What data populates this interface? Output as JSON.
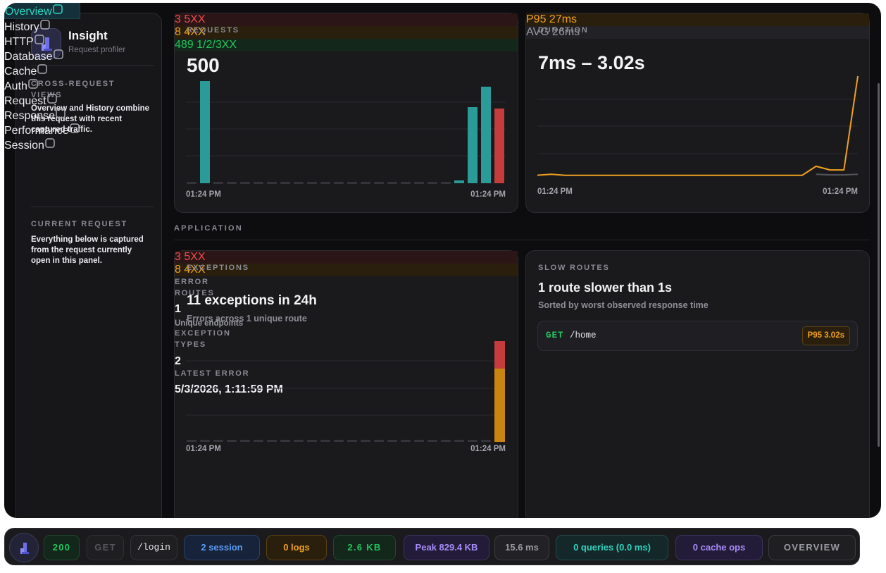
{
  "sidebar": {
    "app_name": "Insight",
    "app_subtitle": "Request profiler",
    "cross_section": {
      "title": "CROSS-REQUEST VIEWS",
      "description": "Overview and History combine this request with recent captured traffic.",
      "items": [
        {
          "label": "Overview",
          "active": true
        },
        {
          "label": "History",
          "active": false
        }
      ]
    },
    "current_section": {
      "title": "CURRENT REQUEST",
      "description": "Everything below is captured from the request currently open in this panel.",
      "items": [
        {
          "label": "HTTP"
        },
        {
          "label": "Database"
        },
        {
          "label": "Cache"
        },
        {
          "label": "Auth"
        },
        {
          "label": "Request"
        },
        {
          "label": "Response"
        },
        {
          "label": "Performance"
        },
        {
          "label": "Session"
        }
      ]
    }
  },
  "requests_card": {
    "label": "REQUESTS",
    "total": "500",
    "badges": [
      {
        "text": "489 1/2/3XX",
        "tone": "green"
      },
      {
        "text": "8 4XX",
        "tone": "orange"
      },
      {
        "text": "3 5XX",
        "tone": "red"
      }
    ],
    "chart": {
      "type": "bar",
      "values": [
        0,
        145,
        0,
        0,
        0,
        0,
        0,
        0,
        0,
        0,
        0,
        0,
        0,
        0,
        0,
        0,
        0,
        0,
        0,
        0,
        4,
        108,
        137,
        0
      ],
      "error_values": [
        0,
        0,
        0,
        0,
        0,
        0,
        0,
        0,
        0,
        0,
        0,
        0,
        0,
        0,
        0,
        0,
        0,
        0,
        0,
        0,
        0,
        0,
        0,
        106
      ],
      "ylim": [
        0,
        150
      ],
      "x_labels": [
        "01:24 PM",
        "01:24 PM"
      ]
    }
  },
  "duration_card": {
    "label": "DURATION",
    "range": "7ms – 3.02s",
    "badges": [
      {
        "text": "AVG 26ms",
        "tone": "gray"
      },
      {
        "text": "P95 27ms",
        "tone": "orange"
      }
    ],
    "chart": {
      "type": "line",
      "values": [
        30,
        60,
        26,
        26,
        26,
        26,
        26,
        26,
        26,
        26,
        26,
        26,
        26,
        26,
        26,
        26,
        26,
        26,
        26,
        26,
        300,
        190,
        190,
        3020
      ],
      "secondary_values": [
        null,
        null,
        null,
        null,
        null,
        null,
        null,
        null,
        null,
        null,
        null,
        null,
        null,
        null,
        null,
        null,
        null,
        null,
        null,
        null,
        60,
        40,
        40,
        60
      ],
      "ylim": [
        0,
        3020
      ],
      "x_labels": [
        "01:24 PM",
        "01:24 PM"
      ]
    }
  },
  "section_heading": "APPLICATION",
  "exceptions_card": {
    "label": "EXCEPTIONS",
    "headline": "11 exceptions in 24h",
    "subline": "Errors across 1 unique route",
    "badges": [
      {
        "text": "8 4XX",
        "tone": "orange"
      },
      {
        "text": "3 5XX",
        "tone": "red"
      }
    ],
    "chart": {
      "type": "stacked-bar",
      "client_values": [
        0,
        0,
        0,
        0,
        0,
        0,
        0,
        0,
        0,
        0,
        0,
        0,
        0,
        0,
        0,
        0,
        0,
        0,
        0,
        0,
        0,
        0,
        0,
        8
      ],
      "server_values": [
        0,
        0,
        0,
        0,
        0,
        0,
        0,
        0,
        0,
        0,
        0,
        0,
        0,
        0,
        0,
        0,
        0,
        0,
        0,
        0,
        0,
        0,
        0,
        3
      ],
      "ylim": [
        0,
        11
      ],
      "x_labels": [
        "01:24 PM",
        "01:24 PM"
      ]
    },
    "stats": [
      {
        "label": "ERROR ROUTES",
        "value": "1",
        "note": "Unique endpoints"
      },
      {
        "label": "EXCEPTION TYPES",
        "value": "2"
      },
      {
        "label": "LATEST ERROR",
        "value": "5/3/2026, 1:11:59 PM"
      }
    ]
  },
  "slow_routes_card": {
    "label": "SLOW ROUTES",
    "headline": "1 route slower than 1s",
    "subline": "Sorted by worst observed response time",
    "routes": [
      {
        "method": "GET",
        "path": "/home",
        "badge": "P95 3.02s"
      }
    ]
  },
  "toolbar": {
    "items": [
      {
        "text": "200",
        "tone": "green"
      },
      {
        "text": "GET",
        "tone": "muted"
      },
      {
        "text": "/login",
        "tone": "mono"
      },
      {
        "text": "2 session",
        "tone": "blue"
      },
      {
        "text": "0 logs",
        "tone": "orange"
      },
      {
        "text": "2.6 KB",
        "tone": "green"
      },
      {
        "text": "Peak 829.4 KB",
        "tone": "purple"
      },
      {
        "text": "15.6 ms",
        "tone": "gray"
      },
      {
        "text": "0 queries (0.0 ms)",
        "tone": "teal"
      },
      {
        "text": "0 cache ops",
        "tone": "purple"
      },
      {
        "text": "OVERVIEW",
        "tone": "outline"
      }
    ]
  }
}
